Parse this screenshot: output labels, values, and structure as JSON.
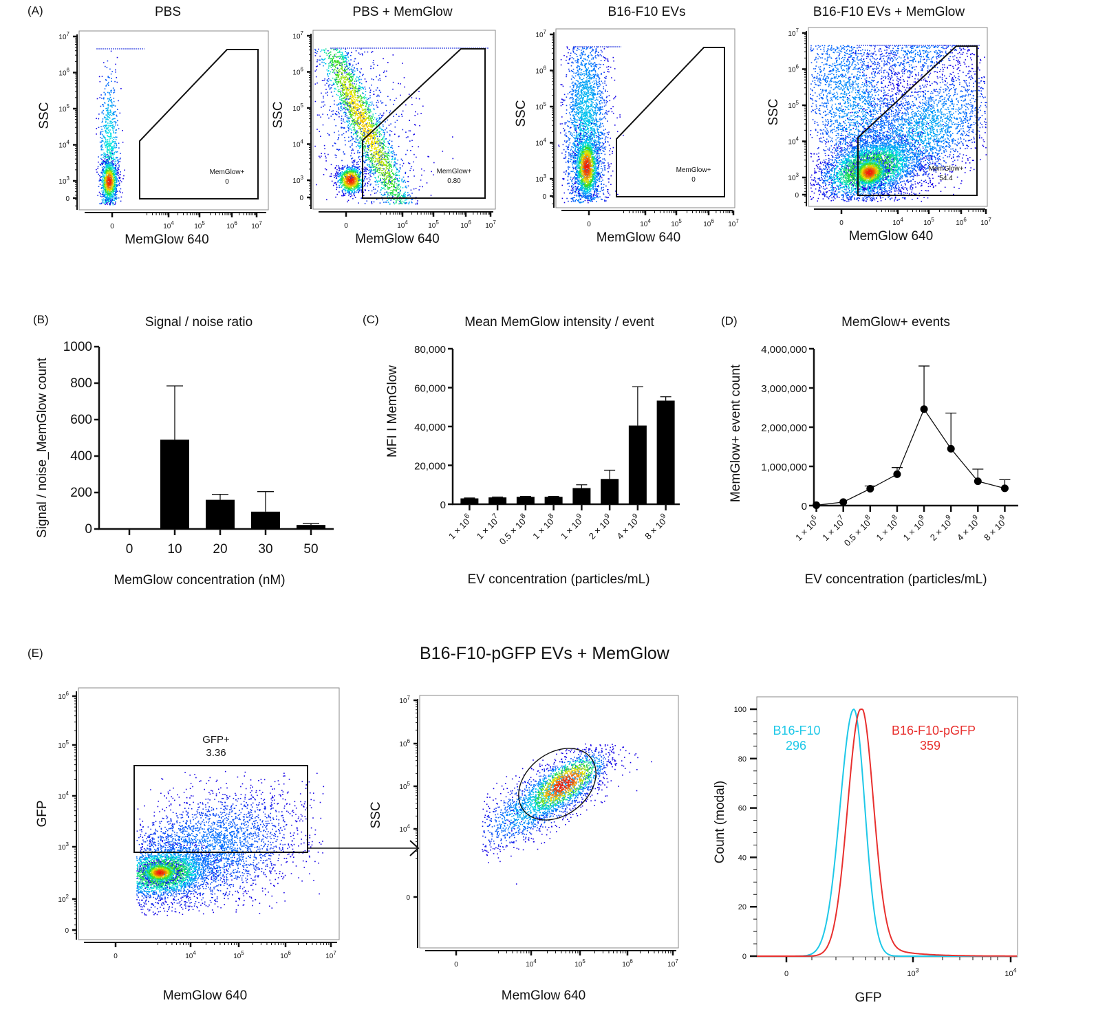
{
  "panel_labels": {
    "A": "(A)",
    "B": "(B)",
    "C": "(C)",
    "D": "(D)",
    "E": "(E)"
  },
  "flow_panels_A": [
    {
      "title": "PBS",
      "xlabel": "MemGlow 640",
      "ylabel": "SSC",
      "gate_label": "MemGlow+",
      "gate_value": "0",
      "population": "narrow-vertical"
    },
    {
      "title": "PBS + MemGlow",
      "xlabel": "MemGlow 640",
      "ylabel": "SSC",
      "gate_label": "MemGlow+",
      "gate_value": "0.80",
      "population": "diagonal"
    },
    {
      "title": "B16-F10 EVs",
      "xlabel": "MemGlow 640",
      "ylabel": "SSC",
      "gate_label": "MemGlow+",
      "gate_value": "0",
      "population": "wide-vertical"
    },
    {
      "title": "B16-F10 EVs + MemGlow",
      "xlabel": "MemGlow 640",
      "ylabel": "SSC",
      "gate_label": "MemGlow+",
      "gate_value": "54.4",
      "population": "broad"
    }
  ],
  "flow_axis": {
    "x_ticks": [
      "0",
      "10^4",
      "10^5",
      "10^6",
      "10^7"
    ],
    "y_ticks": [
      "0",
      "10^3",
      "10^4",
      "10^5",
      "10^6",
      "10^7"
    ]
  },
  "panel_E": {
    "title": "B16-F10-pGFP EVs + MemGlow",
    "left": {
      "xlabel": "MemGlow 640",
      "ylabel": "GFP",
      "gate_label": "GFP+",
      "gate_value": "3.36",
      "x_ticks": [
        "0",
        "10^4",
        "10^5",
        "10^6",
        "10^7"
      ],
      "y_ticks": [
        "0",
        "10^2",
        "10^3",
        "10^4",
        "10^5",
        "10^6"
      ]
    },
    "middle": {
      "xlabel": "MemGlow 640",
      "ylabel": "SSC",
      "x_ticks": [
        "0",
        "10^4",
        "10^5",
        "10^6",
        "10^7"
      ],
      "y_ticks": [
        "0",
        "10^4",
        "10^5",
        "10^6",
        "10^7"
      ]
    },
    "right": {
      "xlabel": "GFP",
      "ylabel": "Count (modal)",
      "x_ticks": [
        "0",
        "10^3",
        "10^4"
      ],
      "y_ticks": [
        "0",
        "20",
        "40",
        "60",
        "80",
        "100"
      ],
      "series": [
        {
          "name": "B16-F10",
          "value": "296",
          "color": "#1ec8e8"
        },
        {
          "name": "B16-F10-pGFP",
          "value": "359",
          "color": "#e8302e"
        }
      ]
    }
  },
  "chart_data": [
    {
      "id": "B",
      "type": "bar",
      "title": "Signal / noise ratio",
      "xlabel": "MemGlow concentration (nM)",
      "ylabel": "Signal / noise_MemGlow count",
      "categories": [
        "0",
        "10",
        "20",
        "30",
        "50"
      ],
      "values": [
        0,
        490,
        160,
        95,
        22
      ],
      "error_upper": [
        0,
        785,
        190,
        205,
        30
      ],
      "ylim": [
        0,
        1000
      ],
      "yticks": [
        0,
        200,
        400,
        600,
        800,
        1000
      ],
      "ytick_labels": [
        "0",
        "200",
        "400",
        "600",
        "800",
        "1000"
      ]
    },
    {
      "id": "C",
      "type": "bar",
      "title": "Mean MemGlow intensity / event",
      "xlabel": "EV concentration (particles/mL)",
      "ylabel": "MFI I MemGlow",
      "categories": [
        "1 × 10^6",
        "1 × 10^7",
        "0.5 × 10^8",
        "1 × 10^8",
        "1 × 10^9",
        "2 × 10^9",
        "4 × 10^9",
        "8 × 10^9"
      ],
      "values": [
        3000,
        3500,
        3800,
        3800,
        8300,
        13000,
        40500,
        53300
      ],
      "error_upper": [
        3200,
        3700,
        4000,
        4000,
        10000,
        17500,
        60500,
        55300
      ],
      "ylim": [
        0,
        80000
      ],
      "yticks": [
        0,
        20000,
        40000,
        60000,
        80000
      ],
      "ytick_labels": [
        "0",
        "20,000",
        "40,000",
        "60,000",
        "80,000"
      ]
    },
    {
      "id": "D",
      "type": "line",
      "title": "MemGlow+ events",
      "xlabel": "EV concentration (particles/mL)",
      "ylabel": "MemGlow+ event count",
      "categories": [
        "1 × 10^6",
        "1 × 10^7",
        "0.5 × 10^8",
        "1 × 10^8",
        "1 × 10^9",
        "2 × 10^9",
        "4 × 10^9",
        "8 × 10^9"
      ],
      "values": [
        10000,
        90000,
        430000,
        800000,
        2460000,
        1450000,
        620000,
        440000
      ],
      "error_upper": [
        10000,
        90000,
        500000,
        970000,
        3560000,
        2360000,
        930000,
        660000
      ],
      "ylim": [
        0,
        4000000
      ],
      "yticks": [
        0,
        1000000,
        2000000,
        3000000,
        4000000
      ],
      "ytick_labels": [
        "0",
        "1,000,000",
        "2,000,000",
        "3,000,000",
        "4,000,000"
      ]
    }
  ]
}
